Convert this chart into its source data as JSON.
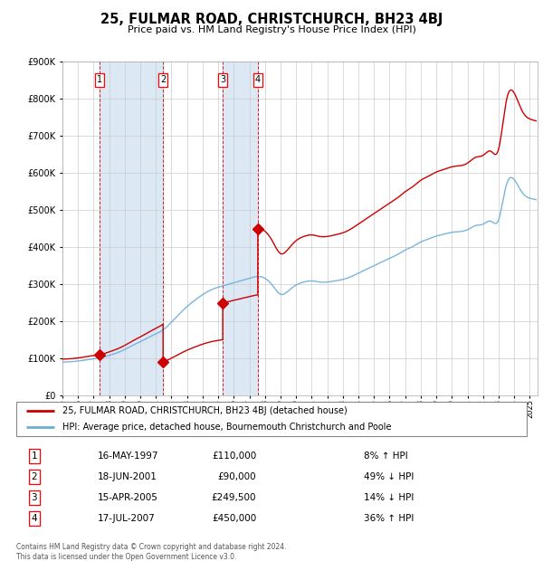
{
  "title": "25, FULMAR ROAD, CHRISTCHURCH, BH23 4BJ",
  "subtitle": "Price paid vs. HM Land Registry's House Price Index (HPI)",
  "transactions": [
    {
      "num": 1,
      "date_str": "16-MAY-1997",
      "date_x": 1997.37,
      "price": 110000,
      "pct": "8% ↑ HPI"
    },
    {
      "num": 2,
      "date_str": "18-JUN-2001",
      "date_x": 2001.46,
      "price": 90000,
      "pct": "49% ↓ HPI"
    },
    {
      "num": 3,
      "date_str": "15-APR-2005",
      "date_x": 2005.29,
      "price": 249500,
      "pct": "14% ↓ HPI"
    },
    {
      "num": 4,
      "date_str": "17-JUL-2007",
      "date_x": 2007.54,
      "price": 450000,
      "pct": "36% ↑ HPI"
    }
  ],
  "legend_line1": "25, FULMAR ROAD, CHRISTCHURCH, BH23 4BJ (detached house)",
  "legend_line2": "HPI: Average price, detached house, Bournemouth Christchurch and Poole",
  "footer": "Contains HM Land Registry data © Crown copyright and database right 2024.\nThis data is licensed under the Open Government Licence v3.0.",
  "hpi_color": "#6baed6",
  "price_color": "#cc0000",
  "bg_color": "#ffffff",
  "shade_color": "#dce9f5",
  "ylim": [
    0,
    900000
  ],
  "xlim_start": 1995.0,
  "xlim_end": 2025.5,
  "hpi_anchors": [
    [
      1995.0,
      90000
    ],
    [
      1995.5,
      91000
    ],
    [
      1996.0,
      93000
    ],
    [
      1996.5,
      96000
    ],
    [
      1997.0,
      99000
    ],
    [
      1997.5,
      102000
    ],
    [
      1998.0,
      108000
    ],
    [
      1998.5,
      115000
    ],
    [
      1999.0,
      124000
    ],
    [
      1999.5,
      135000
    ],
    [
      2000.0,
      145000
    ],
    [
      2000.5,
      156000
    ],
    [
      2001.0,
      166000
    ],
    [
      2001.5,
      178000
    ],
    [
      2002.0,
      198000
    ],
    [
      2002.5,
      220000
    ],
    [
      2003.0,
      240000
    ],
    [
      2003.5,
      257000
    ],
    [
      2004.0,
      272000
    ],
    [
      2004.5,
      284000
    ],
    [
      2005.0,
      292000
    ],
    [
      2005.5,
      298000
    ],
    [
      2006.0,
      304000
    ],
    [
      2006.5,
      310000
    ],
    [
      2007.0,
      316000
    ],
    [
      2007.5,
      321000
    ],
    [
      2008.0,
      316000
    ],
    [
      2008.5,
      296000
    ],
    [
      2009.0,
      273000
    ],
    [
      2009.5,
      282000
    ],
    [
      2010.0,
      298000
    ],
    [
      2010.5,
      306000
    ],
    [
      2011.0,
      309000
    ],
    [
      2011.5,
      306000
    ],
    [
      2012.0,
      306000
    ],
    [
      2012.5,
      309000
    ],
    [
      2013.0,
      313000
    ],
    [
      2013.5,
      320000
    ],
    [
      2014.0,
      330000
    ],
    [
      2014.5,
      340000
    ],
    [
      2015.0,
      350000
    ],
    [
      2015.5,
      360000
    ],
    [
      2016.0,
      370000
    ],
    [
      2016.5,
      380000
    ],
    [
      2017.0,
      392000
    ],
    [
      2017.5,
      402000
    ],
    [
      2018.0,
      414000
    ],
    [
      2018.5,
      422000
    ],
    [
      2019.0,
      430000
    ],
    [
      2019.5,
      435000
    ],
    [
      2020.0,
      440000
    ],
    [
      2020.5,
      442000
    ],
    [
      2021.0,
      447000
    ],
    [
      2021.5,
      458000
    ],
    [
      2022.0,
      462000
    ],
    [
      2022.5,
      470000
    ],
    [
      2023.0,
      474000
    ],
    [
      2023.5,
      568000
    ],
    [
      2024.0,
      582000
    ],
    [
      2024.5,
      548000
    ],
    [
      2025.0,
      532000
    ],
    [
      2025.5,
      527000
    ]
  ]
}
